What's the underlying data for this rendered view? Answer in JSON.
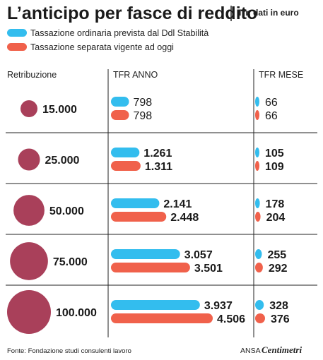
{
  "header": {
    "title": "L’anticipo per fasce di reddito",
    "subtitle": "Tfr, dati in euro"
  },
  "colors": {
    "blue": "#33bdee",
    "red": "#f0614b",
    "circle": "#a9405a",
    "rule": "#222222"
  },
  "footer": {
    "source": "Fonte: Fondazione studi consulenti lavoro",
    "brand_prefix": "ANSA",
    "brand_name": "Centimetri"
  },
  "chart_data": {
    "type": "bar",
    "title": "L’anticipo per fasce di reddito",
    "subtitle": "Tfr, dati in euro",
    "row_label": "Retribuzione",
    "categories": [
      "15.000",
      "25.000",
      "50.000",
      "75.000",
      "100.000"
    ],
    "income_values": [
      15000,
      25000,
      50000,
      75000,
      100000
    ],
    "panels": [
      {
        "label": "TFR ANNO",
        "xlim": [
          0,
          4506
        ],
        "series": [
          {
            "name": "Tassazione ordinaria prevista dal Ddl Stabilità",
            "values": [
              798,
              1261,
              2141,
              3057,
              3937
            ],
            "labels": [
              "798",
              "1.261",
              "2.141",
              "3.057",
              "3.937"
            ]
          },
          {
            "name": "Tassazione separata vigente ad oggi",
            "values": [
              798,
              1311,
              2448,
              3501,
              4506
            ],
            "labels": [
              "798",
              "1.311",
              "2.448",
              "3.501",
              "4.506"
            ]
          }
        ]
      },
      {
        "label": "TFR MESE",
        "xlim": [
          0,
          376
        ],
        "series": [
          {
            "name": "Tassazione ordinaria prevista dal Ddl Stabilità",
            "values": [
              66,
              105,
              178,
              255,
              328
            ],
            "labels": [
              "66",
              "105",
              "178",
              "255",
              "328"
            ]
          },
          {
            "name": "Tassazione separata vigente ad oggi",
            "values": [
              66,
              109,
              204,
              292,
              376
            ],
            "labels": [
              "66",
              "109",
              "204",
              "292",
              "376"
            ]
          }
        ]
      }
    ],
    "legend": {
      "placement": "top-left",
      "entries": [
        "Tassazione ordinaria prevista dal Ddl Stabilità",
        "Tassazione separata vigente ad oggi"
      ]
    },
    "grid": false
  }
}
